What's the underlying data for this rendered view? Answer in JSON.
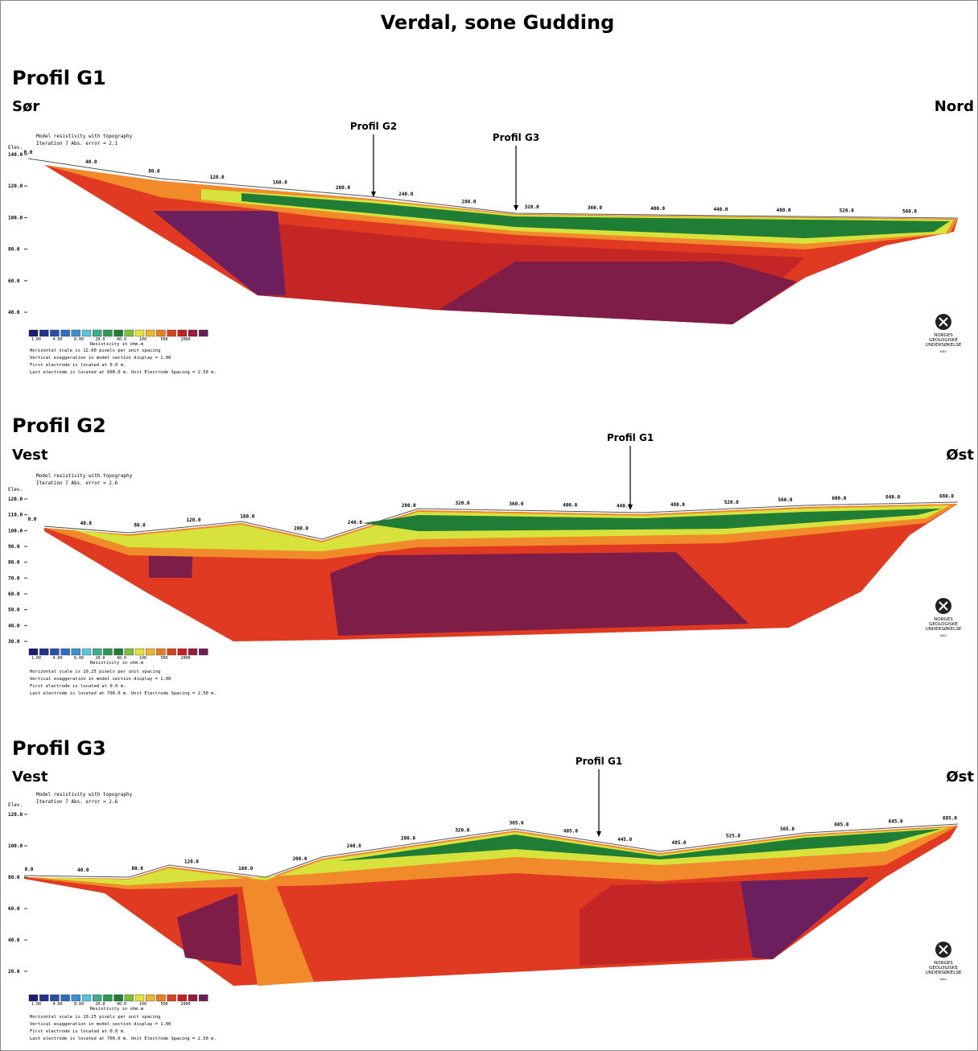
{
  "title": "Verdal, sone Gudding",
  "logo": {
    "lines": [
      "NORGES",
      "GEOLOGISKE",
      "UNDERSØKELSE"
    ],
    "abbr": "NGU"
  },
  "profiles": [
    {
      "title": "Profil G1",
      "left": "Sør",
      "right": "Nord",
      "header": [
        "Model resistivity with topography",
        "Iteration 7 Abs. error = 2.1"
      ],
      "elev_label": "Elev.",
      "elevations": [
        "140.0",
        "120.0",
        "100.0",
        "80.0",
        "60.0",
        "40.0"
      ],
      "distances": [
        "0.0",
        "40.0",
        "80.0",
        "120.0",
        "160.0",
        "200.0",
        "240.0",
        "280.0",
        "320.0",
        "360.0",
        "400.0",
        "440.0",
        "480.0",
        "520.0",
        "560.0"
      ],
      "markers": [
        "Profil G2",
        "Profil G3"
      ],
      "legend": {
        "ticks": [
          "1.00",
          "4.00",
          "8.00",
          "20.0",
          "40.0",
          "100",
          "500",
          "2000"
        ],
        "title": "Resistivity in ohm.m"
      },
      "notes": [
        "Horizontal scale is 12.00 pixels per unit spacing",
        "Vertical exaggeration in model section display = 1.00",
        "First electrode is located at 0.0 m.",
        "Last electrode is located at 600.0 m.     Unit Electrode Spacing = 2.50 m."
      ]
    },
    {
      "title": "Profil G2",
      "left": "Vest",
      "right": "Øst",
      "header": [
        "Model resistivity with topography",
        "Iteration 7 Abs. error = 2.6"
      ],
      "elev_label": "Elev.",
      "elevations": [
        "120.0",
        "110.0",
        "100.0",
        "90.0",
        "80.0",
        "70.0",
        "60.0",
        "50.0",
        "40.0",
        "30.0"
      ],
      "distances": [
        "0.0",
        "40.0",
        "80.0",
        "120.0",
        "160.0",
        "200.0",
        "240.0",
        "280.0",
        "320.0",
        "360.0",
        "400.0",
        "440.0",
        "480.0",
        "520.0",
        "560.0",
        "600.0",
        "640.0",
        "680.0"
      ],
      "markers": [
        "Profil G1"
      ],
      "legend": {
        "ticks": [
          "1.00",
          "4.00",
          "8.00",
          "20.0",
          "40.0",
          "100",
          "500",
          "2000"
        ],
        "title": "Resistivity in ohm.m"
      },
      "notes": [
        "Horizontal scale is 10.25 pixels per unit spacing",
        "Vertical exaggeration in model section display = 1.00",
        "First electrode is located at 0.0 m.",
        "Last electrode is located at 700.0 m.     Unit Electrode Spacing = 2.50 m."
      ]
    },
    {
      "title": "Profil G3",
      "left": "Vest",
      "right": "Øst",
      "header": [
        "Model resistivity with topography",
        "Iteration 7 Abs. error = 2.6"
      ],
      "elev_label": "Elev.",
      "elevations": [
        "120.0",
        "100.0",
        "80.0",
        "60.0",
        "40.0",
        "20.0"
      ],
      "distances": [
        "0.0",
        "40.0",
        "80.0",
        "120.0",
        "160.0",
        "200.0",
        "240.0",
        "280.0",
        "320.0",
        "365.0",
        "405.0",
        "445.0",
        "485.0",
        "525.0",
        "565.0",
        "605.0",
        "645.0",
        "685.0"
      ],
      "markers": [
        "Profil G1"
      ],
      "legend": {
        "ticks": [
          "1.00",
          "4.00",
          "8.00",
          "20.0",
          "40.0",
          "100",
          "500",
          "2000"
        ],
        "title": "Resistivity in ohm.m"
      },
      "notes": [
        "Horizontal scale is 10.25 pixels per unit spacing",
        "Vertical exaggeration in model section display = 1.00",
        "First electrode is located at 0.0 m.",
        "Last electrode is located at 700.0 m.     Unit Electrode Spacing = 2.50 m."
      ]
    }
  ]
}
